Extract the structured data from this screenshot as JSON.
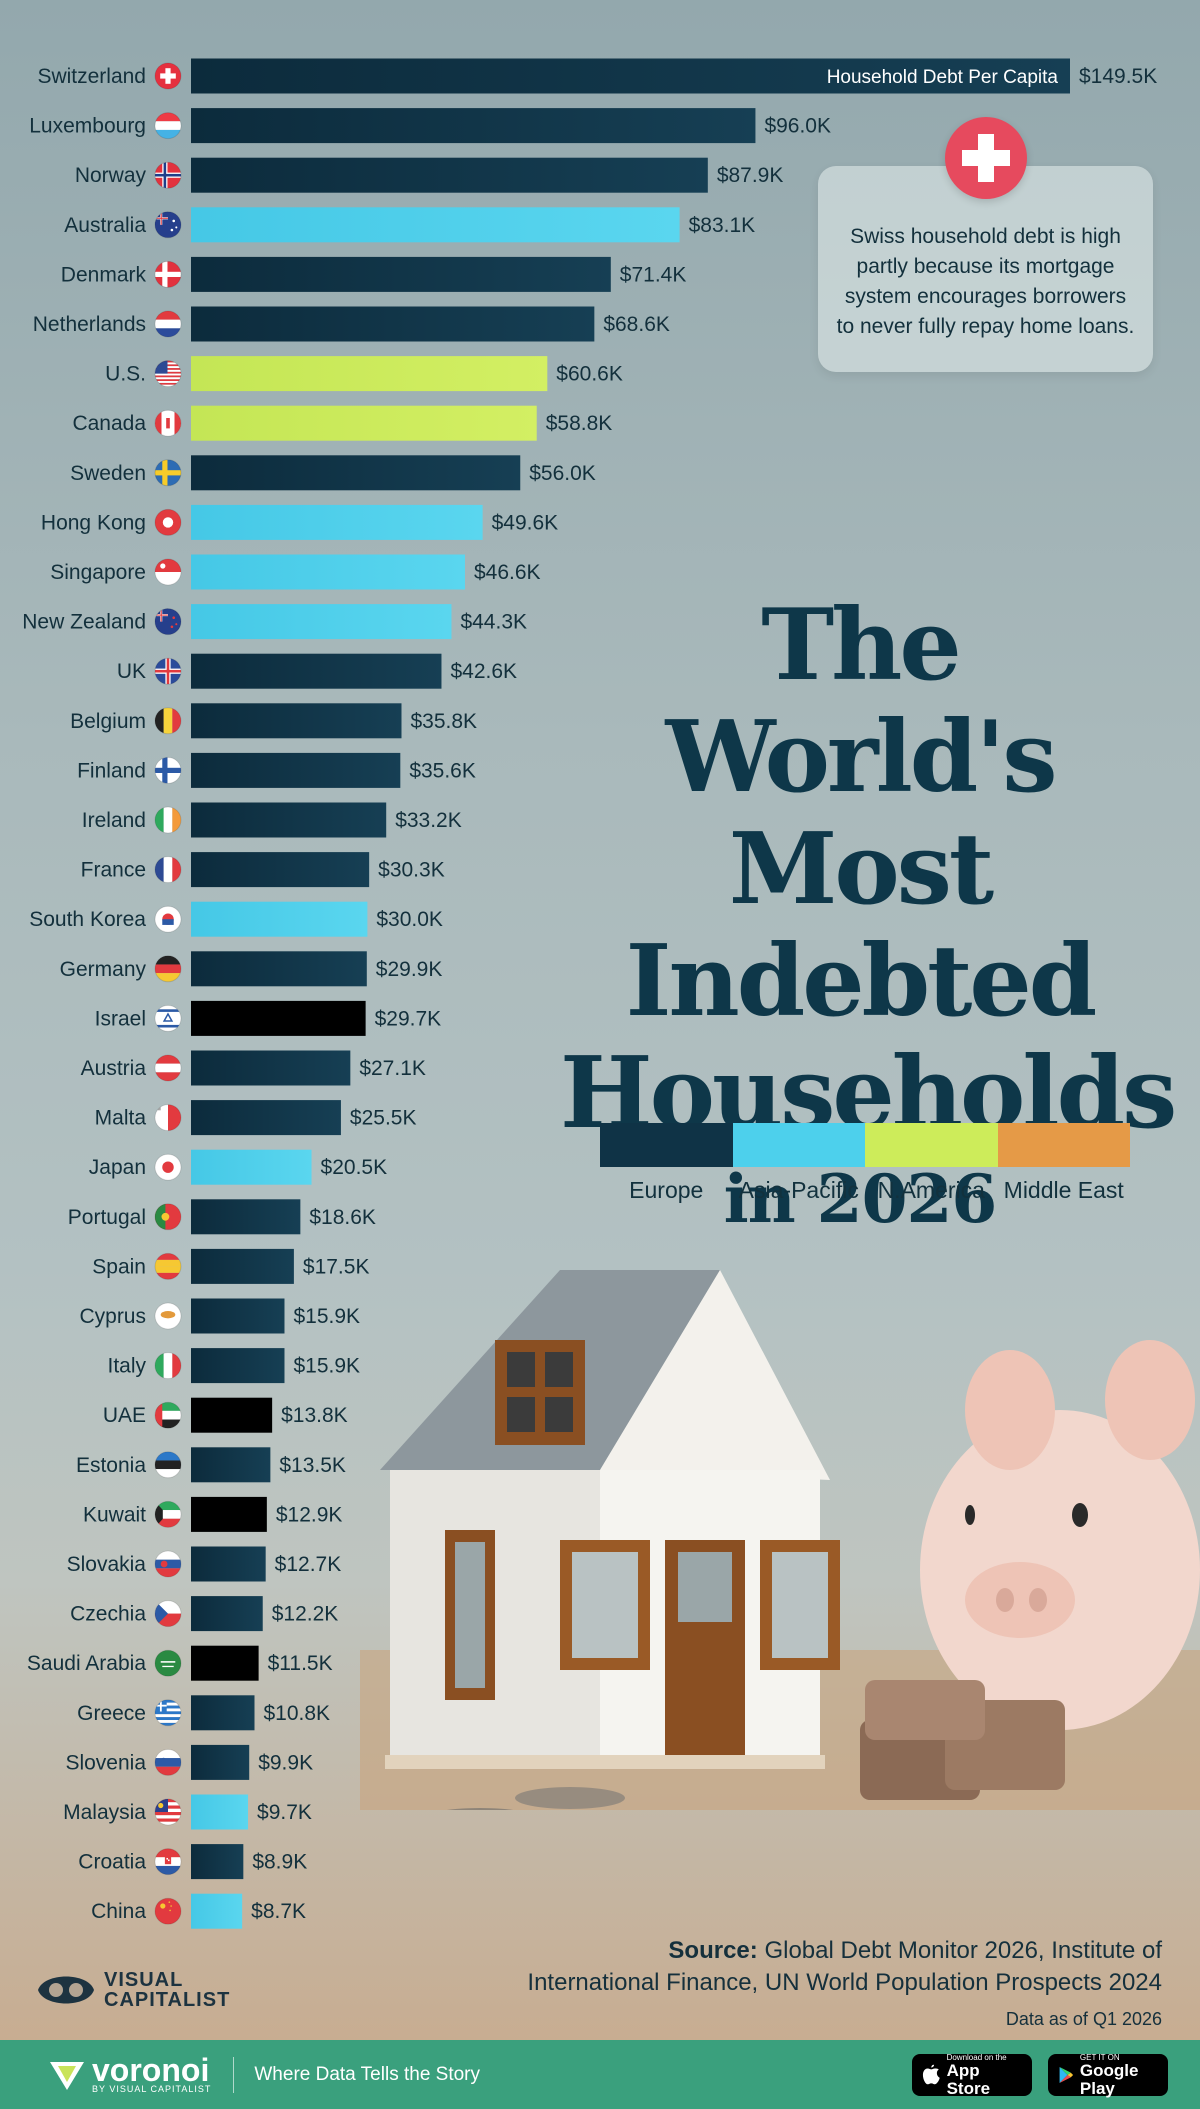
{
  "chart_data": {
    "type": "bar",
    "orientation": "horizontal",
    "title": [
      "The World's",
      "Most Indebted",
      "Households"
    ],
    "subtitle": "in 2026",
    "measure_label": "Household Debt Per Capita",
    "legend": [
      {
        "name": "Europe",
        "color": "#0f3346"
      },
      {
        "name": "Asia-Pacific",
        "color": "#4dd0ec"
      },
      {
        "name": "N.America",
        "color": "#cdec5a"
      },
      {
        "name": "Middle East",
        "color": "#e59a47"
      }
    ],
    "bars": [
      {
        "country": "Switzerland",
        "value": 149.5,
        "label": "$149.5K",
        "region": "Europe",
        "flag": "ch"
      },
      {
        "country": "Luxembourg",
        "value": 96.0,
        "label": "$96.0K",
        "region": "Europe",
        "flag": "lu"
      },
      {
        "country": "Norway",
        "value": 87.9,
        "label": "$87.9K",
        "region": "Europe",
        "flag": "no"
      },
      {
        "country": "Australia",
        "value": 83.1,
        "label": "$83.1K",
        "region": "Asia-Pacific",
        "flag": "au"
      },
      {
        "country": "Denmark",
        "value": 71.4,
        "label": "$71.4K",
        "region": "Europe",
        "flag": "dk"
      },
      {
        "country": "Netherlands",
        "value": 68.6,
        "label": "$68.6K",
        "region": "Europe",
        "flag": "nl"
      },
      {
        "country": "U.S.",
        "value": 60.6,
        "label": "$60.6K",
        "region": "N.America",
        "flag": "us"
      },
      {
        "country": "Canada",
        "value": 58.8,
        "label": "$58.8K",
        "region": "N.America",
        "flag": "ca"
      },
      {
        "country": "Sweden",
        "value": 56.0,
        "label": "$56.0K",
        "region": "Europe",
        "flag": "se"
      },
      {
        "country": "Hong Kong",
        "value": 49.6,
        "label": "$49.6K",
        "region": "Asia-Pacific",
        "flag": "hk"
      },
      {
        "country": "Singapore",
        "value": 46.6,
        "label": "$46.6K",
        "region": "Asia-Pacific",
        "flag": "sg"
      },
      {
        "country": "New Zealand",
        "value": 44.3,
        "label": "$44.3K",
        "region": "Asia-Pacific",
        "flag": "nz"
      },
      {
        "country": "UK",
        "value": 42.6,
        "label": "$42.6K",
        "region": "Europe",
        "flag": "uk"
      },
      {
        "country": "Belgium",
        "value": 35.8,
        "label": "$35.8K",
        "region": "Europe",
        "flag": "be"
      },
      {
        "country": "Finland",
        "value": 35.6,
        "label": "$35.6K",
        "region": "Europe",
        "flag": "fi"
      },
      {
        "country": "Ireland",
        "value": 33.2,
        "label": "$33.2K",
        "region": "Europe",
        "flag": "ie"
      },
      {
        "country": "France",
        "value": 30.3,
        "label": "$30.3K",
        "region": "Europe",
        "flag": "fr"
      },
      {
        "country": "South Korea",
        "value": 30.0,
        "label": "$30.0K",
        "region": "Asia-Pacific",
        "flag": "kr"
      },
      {
        "country": "Germany",
        "value": 29.9,
        "label": "$29.9K",
        "region": "Europe",
        "flag": "de"
      },
      {
        "country": "Israel",
        "value": 29.7,
        "label": "$29.7K",
        "region": "Middle East",
        "flag": "il"
      },
      {
        "country": "Austria",
        "value": 27.1,
        "label": "$27.1K",
        "region": "Europe",
        "flag": "at"
      },
      {
        "country": "Malta",
        "value": 25.5,
        "label": "$25.5K",
        "region": "Europe",
        "flag": "mt"
      },
      {
        "country": "Japan",
        "value": 20.5,
        "label": "$20.5K",
        "region": "Asia-Pacific",
        "flag": "jp"
      },
      {
        "country": "Portugal",
        "value": 18.6,
        "label": "$18.6K",
        "region": "Europe",
        "flag": "pt"
      },
      {
        "country": "Spain",
        "value": 17.5,
        "label": "$17.5K",
        "region": "Europe",
        "flag": "es"
      },
      {
        "country": "Cyprus",
        "value": 15.9,
        "label": "$15.9K",
        "region": "Europe",
        "flag": "cy"
      },
      {
        "country": "Italy",
        "value": 15.9,
        "label": "$15.9K",
        "region": "Europe",
        "flag": "it"
      },
      {
        "country": "UAE",
        "value": 13.8,
        "label": "$13.8K",
        "region": "Middle East",
        "flag": "ae"
      },
      {
        "country": "Estonia",
        "value": 13.5,
        "label": "$13.5K",
        "region": "Europe",
        "flag": "ee"
      },
      {
        "country": "Kuwait",
        "value": 12.9,
        "label": "$12.9K",
        "region": "Middle East",
        "flag": "kw"
      },
      {
        "country": "Slovakia",
        "value": 12.7,
        "label": "$12.7K",
        "region": "Europe",
        "flag": "sk"
      },
      {
        "country": "Czechia",
        "value": 12.2,
        "label": "$12.2K",
        "region": "Europe",
        "flag": "cz"
      },
      {
        "country": "Saudi Arabia",
        "value": 11.5,
        "label": "$11.5K",
        "region": "Middle East",
        "flag": "sa"
      },
      {
        "country": "Greece",
        "value": 10.8,
        "label": "$10.8K",
        "region": "Europe",
        "flag": "gr"
      },
      {
        "country": "Slovenia",
        "value": 9.9,
        "label": "$9.9K",
        "region": "Europe",
        "flag": "si"
      },
      {
        "country": "Malaysia",
        "value": 9.7,
        "label": "$9.7K",
        "region": "Asia-Pacific",
        "flag": "my"
      },
      {
        "country": "Croatia",
        "value": 8.9,
        "label": "$8.9K",
        "region": "Europe",
        "flag": "hr"
      },
      {
        "country": "China",
        "value": 8.7,
        "label": "$8.7K",
        "region": "Asia-Pacific",
        "flag": "cn"
      }
    ]
  },
  "note": {
    "text": "Swiss household debt is high partly because its mortgage system encourages borrowers to never fully repay home loans."
  },
  "source": {
    "label": "Source:",
    "text_line1": "Global Debt Monitor 2026, Institute of",
    "text_line2": "International Finance, UN World Population Prospects 2024",
    "data_as_of": "Data as of Q1 2026"
  },
  "brand": {
    "visual_capitalist_line1": "VISUAL",
    "visual_capitalist_line2": "CAPITALIST",
    "voronoi": "voronoi",
    "voronoi_by": "BY VISUAL CAPITALIST",
    "tagline": "Where Data Tells the Story",
    "app_store_small": "Download on the",
    "app_store_big": "App Store",
    "google_play_small": "GET IT ON",
    "google_play_big": "Google Play"
  }
}
